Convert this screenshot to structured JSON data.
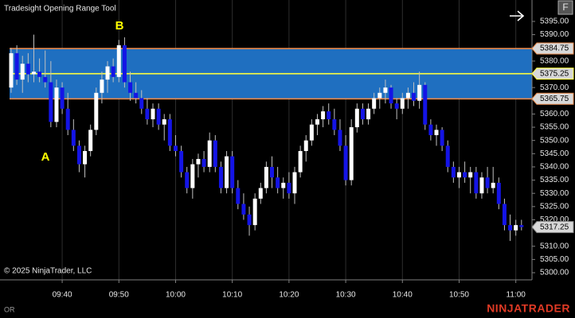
{
  "header": {
    "title": "Tradesight Opening Range Tool"
  },
  "toolbar": {
    "button": "F"
  },
  "chart_data": {
    "type": "candlestick",
    "x": [
      "09:31",
      "09:32",
      "09:33",
      "09:34",
      "09:35",
      "09:36",
      "09:37",
      "09:38",
      "09:39",
      "09:40",
      "09:41",
      "09:42",
      "09:43",
      "09:44",
      "09:45",
      "09:46",
      "09:47",
      "09:48",
      "09:49",
      "09:50",
      "09:51",
      "09:52",
      "09:53",
      "09:54",
      "09:55",
      "09:56",
      "09:57",
      "09:58",
      "09:59",
      "10:00",
      "10:01",
      "10:02",
      "10:03",
      "10:04",
      "10:05",
      "10:06",
      "10:07",
      "10:08",
      "10:09",
      "10:10",
      "10:11",
      "10:12",
      "10:13",
      "10:14",
      "10:15",
      "10:16",
      "10:17",
      "10:18",
      "10:19",
      "10:20",
      "10:21",
      "10:22",
      "10:23",
      "10:24",
      "10:25",
      "10:26",
      "10:27",
      "10:28",
      "10:29",
      "10:30",
      "10:31",
      "10:32",
      "10:33",
      "10:34",
      "10:35",
      "10:36",
      "10:37",
      "10:38",
      "10:39",
      "10:40",
      "10:41",
      "10:42",
      "10:43",
      "10:44",
      "10:45",
      "10:46",
      "10:47",
      "10:48",
      "10:49",
      "10:50",
      "10:51",
      "10:52",
      "10:53",
      "10:54",
      "10:55",
      "10:56",
      "10:57",
      "10:58",
      "10:59",
      "11:00",
      "11:01"
    ],
    "open": [
      5370,
      5383,
      5373,
      5379,
      5375,
      5376,
      5374,
      5372,
      5357,
      5370,
      5362,
      5354,
      5348,
      5341,
      5346,
      5354,
      5368,
      5373,
      5378,
      5374,
      5386,
      5372,
      5368,
      5366,
      5362,
      5358,
      5362,
      5356,
      5358,
      5348,
      5346,
      5338,
      5332,
      5341,
      5343,
      5340,
      5350,
      5340,
      5332,
      5344,
      5332,
      5326,
      5322,
      5318,
      5328,
      5332,
      5340,
      5336,
      5332,
      5334,
      5330,
      5338,
      5346,
      5350,
      5356,
      5358,
      5361,
      5358,
      5354,
      5348,
      5335,
      5355,
      5362,
      5358,
      5362,
      5366,
      5368,
      5370,
      5364,
      5362,
      5366,
      5368,
      5365,
      5371,
      5356,
      5352,
      5354,
      5348,
      5340,
      5336,
      5338,
      5336,
      5338,
      5330,
      5336,
      5332,
      5334,
      5326,
      5318,
      5316,
      5318
    ],
    "high": [
      5385,
      5386,
      5382,
      5383,
      5390,
      5381,
      5384,
      5380,
      5373,
      5372,
      5368,
      5358,
      5350,
      5348,
      5356,
      5370,
      5376,
      5380,
      5381,
      5388,
      5389,
      5376,
      5372,
      5369,
      5366,
      5364,
      5364,
      5360,
      5360,
      5352,
      5348,
      5340,
      5343,
      5345,
      5346,
      5353,
      5352,
      5342,
      5346,
      5346,
      5335,
      5330,
      5325,
      5330,
      5334,
      5342,
      5344,
      5340,
      5336,
      5338,
      5340,
      5348,
      5352,
      5358,
      5360,
      5363,
      5364,
      5362,
      5358,
      5352,
      5358,
      5364,
      5364,
      5364,
      5368,
      5370,
      5373,
      5371,
      5366,
      5368,
      5370,
      5372,
      5376,
      5372,
      5358,
      5356,
      5355,
      5350,
      5342,
      5340,
      5342,
      5340,
      5340,
      5338,
      5340,
      5340,
      5336,
      5328,
      5322,
      5320,
      5320
    ],
    "low": [
      5368,
      5371,
      5368,
      5372,
      5372,
      5372,
      5370,
      5355,
      5355,
      5360,
      5352,
      5346,
      5338,
      5336,
      5344,
      5352,
      5364,
      5368,
      5372,
      5372,
      5370,
      5365,
      5364,
      5360,
      5356,
      5355,
      5354,
      5350,
      5346,
      5344,
      5336,
      5330,
      5328,
      5336,
      5338,
      5338,
      5338,
      5330,
      5330,
      5330,
      5324,
      5320,
      5314,
      5316,
      5326,
      5330,
      5332,
      5330,
      5328,
      5328,
      5326,
      5336,
      5342,
      5348,
      5352,
      5355,
      5356,
      5352,
      5346,
      5333,
      5333,
      5353,
      5356,
      5356,
      5360,
      5362,
      5364,
      5362,
      5358,
      5360,
      5362,
      5363,
      5362,
      5354,
      5350,
      5348,
      5346,
      5338,
      5334,
      5332,
      5334,
      5330,
      5328,
      5328,
      5330,
      5330,
      5324,
      5316,
      5312,
      5314,
      5316
    ],
    "close": [
      5383,
      5373,
      5379,
      5375,
      5376,
      5374,
      5372,
      5357,
      5370,
      5362,
      5354,
      5348,
      5341,
      5346,
      5354,
      5368,
      5373,
      5378,
      5374,
      5386,
      5372,
      5368,
      5366,
      5362,
      5358,
      5362,
      5356,
      5358,
      5348,
      5346,
      5338,
      5332,
      5341,
      5343,
      5340,
      5350,
      5340,
      5332,
      5344,
      5332,
      5326,
      5322,
      5318,
      5328,
      5332,
      5340,
      5336,
      5332,
      5334,
      5330,
      5338,
      5346,
      5350,
      5356,
      5358,
      5361,
      5358,
      5354,
      5348,
      5335,
      5355,
      5362,
      5358,
      5362,
      5366,
      5368,
      5370,
      5364,
      5362,
      5366,
      5368,
      5365,
      5371,
      5356,
      5352,
      5354,
      5348,
      5340,
      5336,
      5338,
      5336,
      5338,
      5330,
      5336,
      5332,
      5334,
      5326,
      5318,
      5316,
      5318,
      5317.25
    ],
    "up_color": "#ffffff",
    "down_color": "#1414e6",
    "wick_color": "#c0c0c0",
    "ylim": [
      5297.3,
      5403.1
    ],
    "yticks": [
      {
        "value": 5395,
        "label": "5395.00"
      },
      {
        "value": 5390,
        "label": "5390.00"
      },
      {
        "value": 5380,
        "label": "5380.00"
      },
      {
        "value": 5370,
        "label": "5370.00"
      },
      {
        "value": 5360,
        "label": "5360.00"
      },
      {
        "value": 5355,
        "label": "5355.00"
      },
      {
        "value": 5350,
        "label": "5350.00"
      },
      {
        "value": 5345,
        "label": "5345.00"
      },
      {
        "value": 5340,
        "label": "5340.00"
      },
      {
        "value": 5335,
        "label": "5335.00"
      },
      {
        "value": 5330,
        "label": "5330.00"
      },
      {
        "value": 5325,
        "label": "5325.00"
      },
      {
        "value": 5320,
        "label": "5320.00"
      },
      {
        "value": 5310,
        "label": "5310.00"
      },
      {
        "value": 5305,
        "label": "5305.00"
      },
      {
        "value": 5300,
        "label": "5300.00"
      }
    ],
    "xticks": [
      "09:40",
      "09:50",
      "10:00",
      "10:10",
      "10:20",
      "10:30",
      "10:40",
      "10:50",
      "11:00"
    ],
    "grid": "x",
    "opening_range": {
      "high": 5384.75,
      "mid": 5375.25,
      "low": 5365.75,
      "fill": "#1f6fc0",
      "edge_color": "#e8884a",
      "mid_color": "#ffff3c"
    },
    "last_price": 5317.25,
    "annotations": [
      "A",
      "B"
    ]
  },
  "footer": {
    "copyright": "© 2025 NinjaTrader, LLC",
    "label": "OR",
    "logo": "NINJATRADER"
  }
}
